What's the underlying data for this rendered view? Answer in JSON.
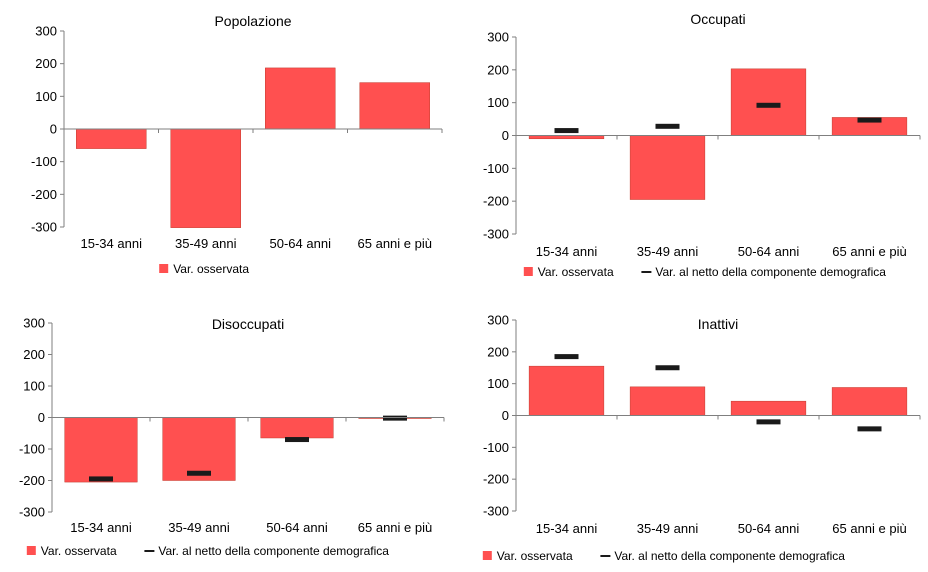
{
  "chart_data": [
    {
      "type": "bar",
      "title": "Popolazione",
      "categories": [
        "15-34 anni",
        "35-49 anni",
        "50-64 anni",
        "65 anni e più"
      ],
      "ylim": [
        -300,
        300
      ],
      "yticks": [
        -300,
        -200,
        -100,
        0,
        100,
        200,
        300
      ],
      "series": [
        {
          "name": "Var. osservata",
          "kind": "bar",
          "color": "#ff5050",
          "values": [
            -60,
            -302,
            187,
            142
          ]
        }
      ],
      "legend": "bottom",
      "grid": false
    },
    {
      "type": "bar",
      "title": "Occupati",
      "categories": [
        "15-34 anni",
        "35-49 anni",
        "50-64 anni",
        "65 anni e più"
      ],
      "ylim": [
        -300,
        300
      ],
      "yticks": [
        -300,
        -200,
        -100,
        0,
        100,
        200,
        300
      ],
      "series": [
        {
          "name": "Var. osservata",
          "kind": "bar",
          "color": "#ff5050",
          "values": [
            -10,
            -195,
            203,
            55
          ]
        },
        {
          "name": "Var. al netto della componente demografica",
          "kind": "marker",
          "color": "#1a1a1a",
          "values": [
            15,
            28,
            92,
            47
          ]
        }
      ],
      "legend": "bottom",
      "grid": false
    },
    {
      "type": "bar",
      "title": "Disoccupati",
      "categories": [
        "15-34 anni",
        "35-49 anni",
        "50-64 anni",
        "65 anni e più"
      ],
      "ylim": [
        -300,
        300
      ],
      "yticks": [
        -300,
        -200,
        -100,
        0,
        100,
        200,
        300
      ],
      "series": [
        {
          "name": "Var. osservata",
          "kind": "bar",
          "color": "#ff5050",
          "values": [
            -205,
            -200,
            -65,
            -3
          ]
        },
        {
          "name": "Var. al netto della componente demografica",
          "kind": "marker",
          "color": "#1a1a1a",
          "values": [
            -195,
            -177,
            -70,
            -2
          ]
        }
      ],
      "legend": "bottom",
      "grid": false
    },
    {
      "type": "bar",
      "title": "Inattivi",
      "categories": [
        "15-34 anni",
        "35-49 anni",
        "50-64 anni",
        "65 anni e più"
      ],
      "ylim": [
        -300,
        300
      ],
      "yticks": [
        -300,
        -200,
        -100,
        0,
        100,
        200,
        300
      ],
      "series": [
        {
          "name": "Var. osservata",
          "kind": "bar",
          "color": "#ff5050",
          "values": [
            155,
            90,
            45,
            88
          ]
        },
        {
          "name": "Var. al netto della componente demografica",
          "kind": "marker",
          "color": "#1a1a1a",
          "values": [
            185,
            150,
            -20,
            -42
          ]
        }
      ],
      "legend": "bottom",
      "grid": false
    }
  ]
}
